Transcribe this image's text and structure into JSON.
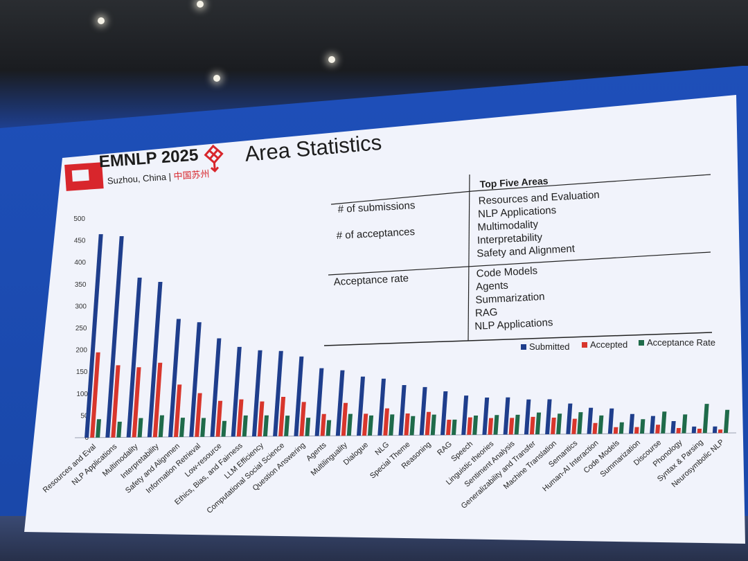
{
  "slide": {
    "title": "Area Statistics",
    "logo_text": "EMNLP 2025",
    "logo_subtitle": "Suzhou, China",
    "logo_subtitle_cn": "中国苏州"
  },
  "top_areas_table": {
    "header": "Top Five Areas",
    "rows": [
      {
        "metric": [
          "# of submissions",
          "# of acceptances"
        ],
        "areas": [
          "Resources and Evaluation",
          "NLP Applications",
          "Multimodality",
          "Interpretability",
          "Safety and Alignment"
        ]
      },
      {
        "metric": [
          "Acceptance rate"
        ],
        "areas": [
          "Code Models",
          "Agents",
          "Summarization",
          "RAG",
          "NLP Applications"
        ]
      }
    ]
  },
  "chart_data": {
    "type": "bar",
    "title": "",
    "xlabel": "",
    "ylabel": "",
    "ylim": [
      0,
      500
    ],
    "yticks": [
      0,
      50,
      100,
      150,
      200,
      250,
      300,
      350,
      400,
      450,
      500
    ],
    "grid": false,
    "legend_position": "top-right",
    "categories": [
      "Resources and Eval",
      "NLP Applications",
      "Multimodality",
      "Interpretability",
      "Safety and Alignmen",
      "Information Retrieval",
      "Low-resource",
      "Ethics, Bias, and Fairness",
      "LLM Efficiency",
      "Computational Social Science",
      "Question Answering",
      "Agents",
      "Multilinguality",
      "Dialogue",
      "NLG",
      "Special Theme",
      "Reasoning",
      "RAG",
      "Speech",
      "Linguistic theories",
      "Sentiment Analysis",
      "Generalizability and Transfer",
      "Machine Translation",
      "Semantics",
      "Human-AI Interaction",
      "Code Models",
      "Summarization",
      "Discourse",
      "Phonology",
      "Syntax & Parsing",
      "Neurosymbolic NLP"
    ],
    "series": [
      {
        "name": "Submitted",
        "color": "#1f3e8c",
        "values": [
          465,
          460,
          365,
          355,
          270,
          262,
          225,
          205,
          197,
          195,
          182,
          155,
          150,
          135,
          130,
          115,
          110,
          100,
          90,
          85,
          85,
          80,
          80,
          70,
          60,
          58,
          45,
          40,
          28,
          15,
          15
        ]
      },
      {
        "name": "Accepted",
        "color": "#d8362c",
        "values": [
          195,
          165,
          160,
          170,
          120,
          100,
          82,
          85,
          80,
          90,
          78,
          50,
          75,
          50,
          62,
          50,
          53,
          35,
          40,
          38,
          38,
          40,
          38,
          35,
          25,
          15,
          15,
          20,
          12,
          10,
          8
        ]
      },
      {
        "name": "Acceptance Rate",
        "color": "#1f6b4a",
        "values": [
          42,
          36,
          44,
          50,
          44,
          43,
          36,
          48,
          48,
          47,
          42,
          36,
          50,
          46,
          48,
          44,
          47,
          35,
          44,
          45,
          45,
          50,
          47,
          50,
          42,
          26,
          33,
          50,
          43,
          67,
          53
        ]
      }
    ]
  }
}
